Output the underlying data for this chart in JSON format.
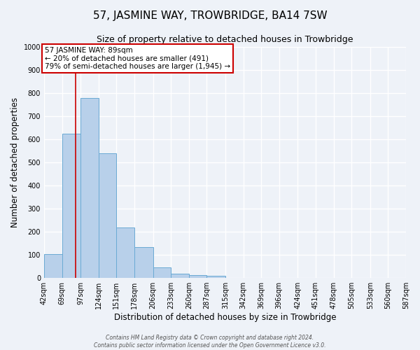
{
  "title": "57, JASMINE WAY, TROWBRIDGE, BA14 7SW",
  "subtitle": "Size of property relative to detached houses in Trowbridge",
  "xlabel": "Distribution of detached houses by size in Trowbridge",
  "ylabel": "Number of detached properties",
  "bar_values": [
    103,
    625,
    780,
    540,
    220,
    135,
    45,
    18,
    13,
    10,
    0,
    0,
    0,
    0,
    0,
    0,
    0,
    0,
    0,
    0
  ],
  "bin_labels": [
    "42sqm",
    "69sqm",
    "97sqm",
    "124sqm",
    "151sqm",
    "178sqm",
    "206sqm",
    "233sqm",
    "260sqm",
    "287sqm",
    "315sqm",
    "342sqm",
    "369sqm",
    "396sqm",
    "424sqm",
    "451sqm",
    "478sqm",
    "505sqm",
    "533sqm",
    "560sqm",
    "587sqm"
  ],
  "bin_edges": [
    42,
    69,
    97,
    124,
    151,
    178,
    206,
    233,
    260,
    287,
    315,
    342,
    369,
    396,
    424,
    451,
    478,
    505,
    533,
    560,
    587
  ],
  "bar_color": "#b8d0ea",
  "bar_edge_color": "#6aaad4",
  "property_line_x": 89,
  "property_line_color": "#cc0000",
  "ylim": [
    0,
    1000
  ],
  "yticks": [
    0,
    100,
    200,
    300,
    400,
    500,
    600,
    700,
    800,
    900,
    1000
  ],
  "annotation_text": "57 JASMINE WAY: 89sqm\n← 20% of detached houses are smaller (491)\n79% of semi-detached houses are larger (1,945) →",
  "annotation_box_color": "#ffffff",
  "annotation_box_edge_color": "#cc0000",
  "footer_line1": "Contains HM Land Registry data © Crown copyright and database right 2024.",
  "footer_line2": "Contains public sector information licensed under the Open Government Licence v3.0.",
  "background_color": "#eef2f8",
  "grid_color": "#ffffff",
  "title_fontsize": 11,
  "subtitle_fontsize": 9,
  "axis_label_fontsize": 8.5,
  "tick_fontsize": 7,
  "annot_fontsize": 7.5
}
